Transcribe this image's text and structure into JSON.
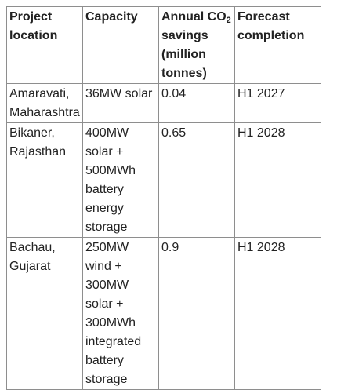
{
  "table": {
    "headers": {
      "location": "Project location",
      "capacity": "Capacity",
      "savings_prefix": "Annual CO",
      "savings_sub": "2",
      "savings_suffix": " savings (million tonnes)",
      "completion": "Forecast completion"
    },
    "rows": [
      {
        "location": "Amaravati, Maharashtra",
        "capacity": "36MW solar",
        "savings": "0.04",
        "completion": "H1 2027"
      },
      {
        "location": "Bikaner, Rajasthan",
        "capacity": "400MW solar + 500MWh battery energy storage",
        "savings": "0.65",
        "completion": "H1 2028"
      },
      {
        "location": "Bachau, Gujarat",
        "capacity": "250MW wind + 300MW solar + 300MWh integrated battery storage",
        "savings": "0.9",
        "completion": "H1 2028"
      }
    ]
  }
}
